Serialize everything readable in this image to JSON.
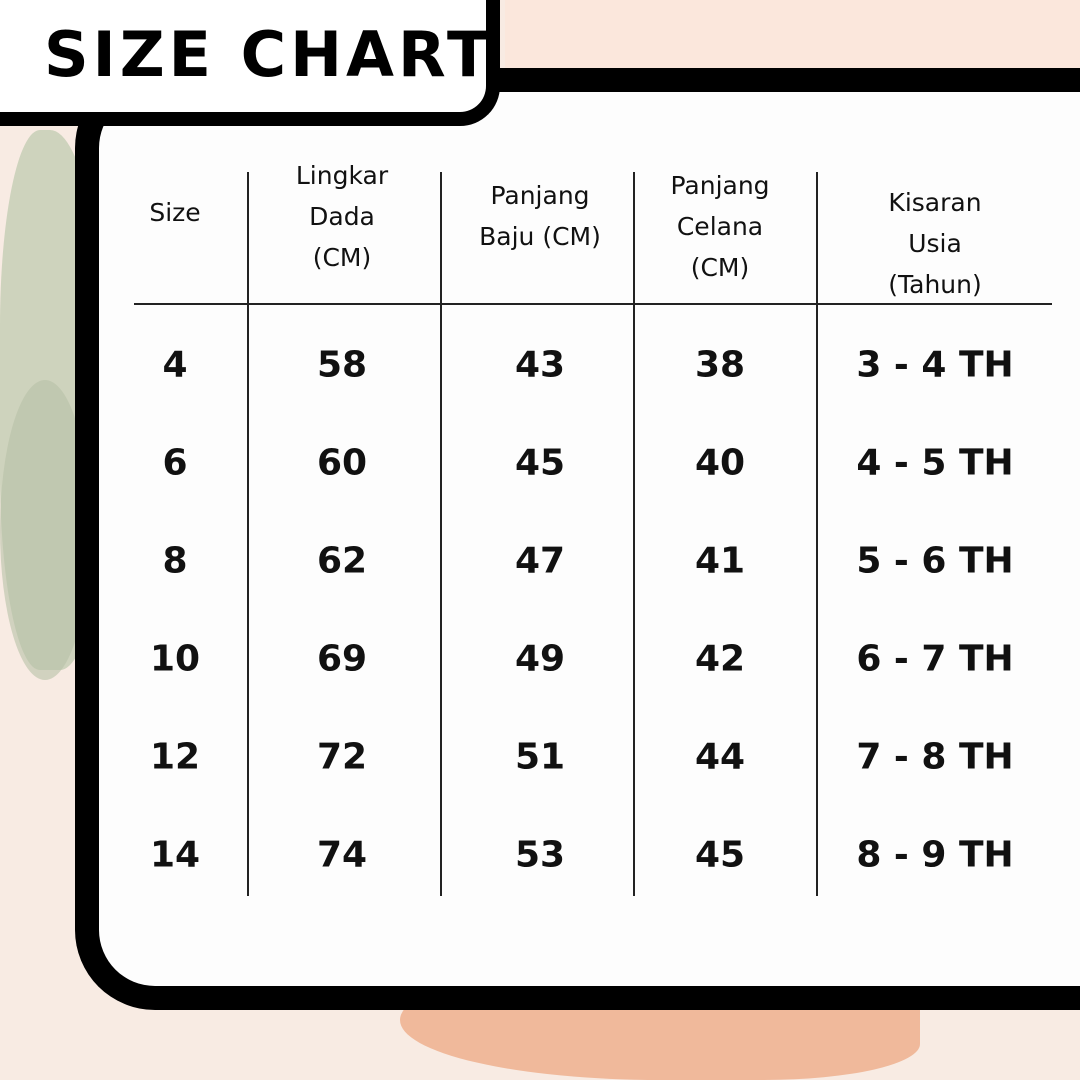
{
  "title": "SIZE CHART",
  "colors": {
    "background": "#f8ebe3",
    "panel_border": "#000000",
    "panel": "#fdfdfd"
  },
  "table": {
    "headers": [
      "Size",
      "Lingkar\nDada\n(CM)",
      "Panjang\nBaju (CM)",
      "Panjang\nCelana\n(CM)",
      "Kisaran Usia\n(Tahun)"
    ],
    "rows": [
      [
        "4",
        "58",
        "43",
        "38",
        "3 - 4 TH"
      ],
      [
        "6",
        "60",
        "45",
        "40",
        "4 - 5 TH"
      ],
      [
        "8",
        "62",
        "47",
        "41",
        "5 - 6 TH"
      ],
      [
        "10",
        "69",
        "49",
        "42",
        "6 - 7 TH"
      ],
      [
        "12",
        "72",
        "51",
        "44",
        "7 - 8 TH"
      ],
      [
        "14",
        "74",
        "53",
        "45",
        "8 - 9 TH"
      ]
    ]
  }
}
